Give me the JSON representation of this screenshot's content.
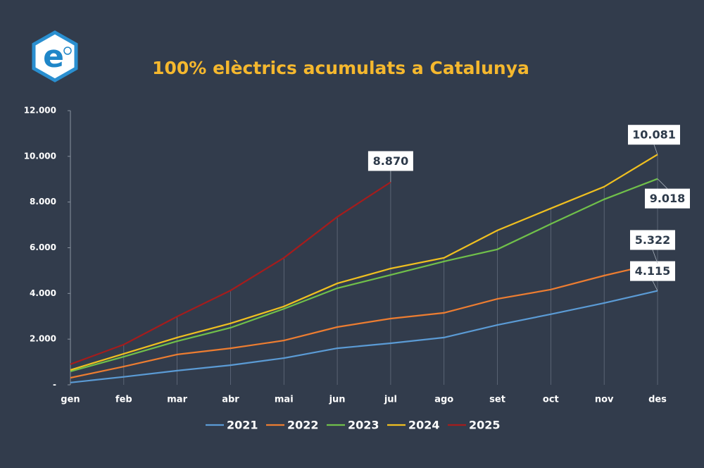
{
  "chart_data": {
    "type": "line",
    "title": "100% elèctrics acumulats a Catalunya",
    "categories": [
      "gen",
      "feb",
      "mar",
      "abr",
      "mai",
      "jun",
      "jul",
      "ago",
      "set",
      "oct",
      "nov",
      "des"
    ],
    "series": [
      {
        "name": "2021",
        "color": "#5b9bd5",
        "values": [
          100,
          350,
          620,
          860,
          1170,
          1600,
          1820,
          2070,
          2620,
          3090,
          3580,
          4115
        ],
        "value_labels": [
          null,
          null,
          null,
          null,
          null,
          null,
          null,
          null,
          null,
          null,
          null,
          "4.115"
        ]
      },
      {
        "name": "2022",
        "color": "#ed7d31",
        "values": [
          310,
          800,
          1330,
          1600,
          1940,
          2530,
          2900,
          3150,
          3760,
          4170,
          4780,
          5322
        ],
        "value_labels": [
          null,
          null,
          null,
          null,
          null,
          null,
          null,
          null,
          null,
          null,
          null,
          "5.322"
        ]
      },
      {
        "name": "2023",
        "color": "#70c04a",
        "values": [
          590,
          1230,
          1910,
          2500,
          3330,
          4230,
          4810,
          5400,
          5930,
          7040,
          8120,
          9018
        ],
        "value_labels": [
          null,
          null,
          null,
          null,
          null,
          null,
          null,
          null,
          null,
          null,
          null,
          "9.018"
        ]
      },
      {
        "name": "2024",
        "color": "#f0c020",
        "values": [
          650,
          1360,
          2070,
          2690,
          3430,
          4440,
          5090,
          5560,
          6760,
          7720,
          8670,
          10081
        ],
        "value_labels": [
          null,
          null,
          null,
          null,
          null,
          null,
          null,
          null,
          null,
          null,
          null,
          "10.081"
        ]
      },
      {
        "name": "2025",
        "color": "#a51c1c",
        "values": [
          900,
          1760,
          2990,
          4130,
          5560,
          7350,
          8870,
          null,
          null,
          null,
          null,
          null
        ],
        "value_labels": [
          null,
          null,
          null,
          null,
          null,
          null,
          "8.870",
          null,
          null,
          null,
          null,
          null
        ]
      }
    ],
    "ylim": [
      0,
      12000
    ],
    "yticks": [
      {
        "value": 0,
        "label": "-"
      },
      {
        "value": 2000,
        "label": "2.000"
      },
      {
        "value": 4000,
        "label": "4.000"
      },
      {
        "value": 6000,
        "label": "6.000"
      },
      {
        "value": 8000,
        "label": "8.000"
      },
      {
        "value": 10000,
        "label": "10.000"
      },
      {
        "value": 12000,
        "label": "12.000"
      }
    ],
    "grid": true,
    "legend": "bottom"
  }
}
